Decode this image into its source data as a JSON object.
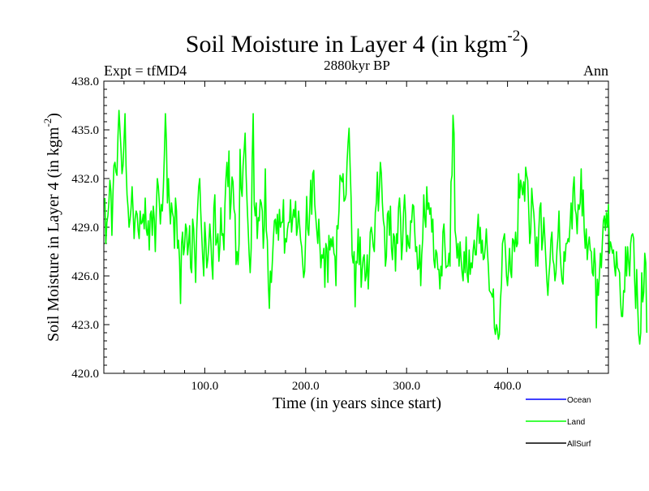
{
  "chart_data": {
    "type": "line",
    "title": "Soil Moisture in Layer 4 (in kgm",
    "title_sup": "-2",
    "title_close": ")",
    "subtitle": "2880kyr BP",
    "left_label": "Expt = tfMD4",
    "right_label": "Ann",
    "xlabel": "Time (in years since start)",
    "ylabel": "Soil Moisture in Layer 4 (in kgm",
    "ylabel_sup": "-2",
    "ylabel_close": ")",
    "xlim": [
      0,
      500
    ],
    "ylim": [
      420,
      438
    ],
    "x_ticks": [
      100,
      200,
      300,
      400
    ],
    "x_tick_labels": [
      "100.0",
      "200.0",
      "300.0",
      "400.0"
    ],
    "y_ticks": [
      420,
      423,
      426,
      429,
      432,
      435,
      438
    ],
    "y_tick_labels": [
      "420.0",
      "423.0",
      "426.0",
      "429.0",
      "432.0",
      "435.0",
      "438.0"
    ],
    "legend": [
      {
        "name": "Ocean",
        "color": "#0000ff"
      },
      {
        "name": "Land",
        "color": "#00ff00"
      },
      {
        "name": "AllSurf",
        "color": "#000000"
      }
    ],
    "series": [
      {
        "name": "Land",
        "color": "#00ff00",
        "x_start": 1,
        "x_step": 1,
        "values": [
          430.8,
          428.0,
          429.3,
          429.7,
          430.5,
          431.9,
          431.2,
          428.5,
          431.0,
          432.8,
          433.0,
          432.4,
          432.2,
          434.6,
          436.2,
          435.0,
          433.8,
          432.3,
          432.8,
          434.3,
          436.0,
          432.8,
          431.0,
          430.2,
          429.0,
          429.5,
          430.2,
          431.5,
          430.0,
          428.3,
          429.5,
          430.0,
          429.8,
          428.8,
          428.3,
          430.0,
          429.2,
          429.3,
          429.8,
          428.9,
          430.8,
          428.9,
          428.5,
          429.4,
          427.6,
          429.8,
          430.0,
          428.5,
          430.3,
          429.5,
          427.5,
          430.1,
          432.0,
          431.5,
          430.5,
          429.2,
          430.4,
          430.0,
          431.5,
          433.5,
          436.0,
          434.3,
          430.5,
          432.0,
          430.4,
          429.2,
          430.5,
          429.9,
          429.6,
          427.7,
          430.8,
          430.0,
          427.7,
          428.2,
          427.0,
          424.3,
          428.0,
          428.7,
          427.3,
          427.8,
          429.2,
          428.9,
          427.3,
          428.0,
          429.1,
          426.5,
          426.2,
          429.5,
          428.9,
          427.4,
          425.6,
          428.8,
          430.3,
          431.5,
          432.0,
          430.0,
          428.5,
          427.1,
          426.0,
          429.3,
          428.2,
          426.5,
          427.0,
          427.9,
          429.2,
          428.2,
          426.7,
          425.8,
          430.2,
          431.0,
          427.9,
          428.1,
          428.6,
          426.9,
          427.9,
          430.2,
          428.5,
          428.6,
          427.6,
          430.4,
          432.0,
          433.0,
          431.5,
          433.7,
          429.5,
          430.5,
          432.1,
          431.8,
          430.1,
          429.8,
          426.7,
          427.5,
          426.7,
          428.0,
          433.8,
          431.4,
          430.9,
          432.8,
          433.7,
          434.8,
          432.2,
          430.4,
          428.9,
          427.3,
          426.2,
          427.7,
          433.2,
          436.0,
          430.4,
          429.7,
          430.5,
          428.3,
          429.6,
          429.4,
          430.7,
          430.5,
          430.0,
          427.7,
          429.1,
          432.6,
          428.8,
          428.2,
          425.5,
          424.0,
          426.3,
          425.6,
          426.9,
          428.3,
          429.4,
          429.5,
          428.6,
          429.8,
          428.2,
          430.1,
          429.0,
          429.3,
          429.3,
          430.7,
          427.4,
          428.3,
          428.1,
          428.9,
          429.3,
          429.3,
          430.7,
          428.7,
          429.5,
          430.1,
          429.6,
          430.6,
          428.5,
          429.0,
          430.0,
          429.1,
          428.2,
          427.8,
          426.8,
          425.9,
          426.3,
          428.5,
          430.9,
          428.9,
          428.5,
          430.0,
          431.9,
          429.8,
          432.3,
          432.5,
          430.4,
          429.6,
          428.8,
          428.0,
          429.5,
          428.0,
          426.5,
          427.3,
          427.1,
          427.7,
          425.3,
          428.0,
          427.7,
          425.6,
          428.5,
          427.6,
          428.3,
          427.8,
          428.4,
          427.4,
          427.2,
          425.4,
          429.1,
          428.9,
          430.0,
          432.2,
          432.0,
          431.8,
          432.3,
          430.6,
          430.7,
          431.0,
          433.0,
          434.2,
          435.1,
          432.8,
          430.8,
          427.3,
          426.8,
          427.5,
          424.1,
          426.9,
          426.8,
          428.9,
          426.7,
          428.4,
          425.3,
          426.4,
          427.1,
          427.3,
          425.7,
          426.0,
          427.3,
          425.2,
          426.8,
          428.7,
          429.0,
          428.5,
          427.8,
          427.5,
          429.9,
          430.5,
          432.4,
          430.0,
          431.3,
          433.0,
          432.3,
          430.5,
          429.4,
          429.0,
          426.6,
          427.2,
          429.8,
          430.0,
          428.5,
          430.3,
          427.7,
          427.0,
          428.6,
          428.4,
          426.3,
          428.6,
          428.0,
          430.2,
          430.8,
          429.6,
          427.0,
          428.0,
          429.9,
          431.0,
          429.7,
          427.5,
          428.5,
          427.9,
          427.7,
          429.4,
          429.3,
          430.4,
          430.3,
          428.8,
          427.5,
          427.8,
          426.4,
          426.5,
          427.9,
          425.4,
          427.3,
          428.3,
          431.0,
          429.6,
          429.0,
          431.5,
          430.1,
          430.5,
          429.8,
          430.2,
          428.7,
          429.5,
          427.0,
          426.5,
          427.6,
          427.4,
          426.4,
          426.4,
          425.2,
          426.6,
          426.0,
          428.7,
          429.2,
          427.8,
          426.5,
          426.6,
          426.6,
          427.4,
          426.6,
          431.8,
          432.2,
          435.9,
          434.8,
          428.8,
          428.3,
          427.1,
          428.0,
          426.6,
          428.1,
          427.0,
          426.2,
          425.7,
          427.5,
          426.2,
          428.4,
          426.1,
          425.6,
          427.6,
          426.1,
          426.8,
          426.5,
          427.6,
          428.2,
          427.3,
          427.3,
          428.8,
          429.8,
          428.0,
          429.0,
          427.4,
          428.2,
          427.0,
          427.1,
          427.8,
          428.9,
          427.6,
          426.6,
          425.1,
          425.0,
          424.9,
          424.7,
          425.2,
          422.8,
          422.4,
          423.0,
          422.7,
          422.1,
          422.4,
          424.5,
          425.5,
          428.0,
          428.3,
          428.6,
          427.5,
          426.0,
          425.4,
          426.4,
          427.7,
          426.3,
          425.9,
          428.3,
          428.2,
          427.5,
          428.7,
          427.8,
          428.0,
          432.3,
          430.8,
          431.9,
          431.5,
          431.0,
          431.8,
          430.6,
          432.7,
          432.2,
          431.9,
          430.1,
          428.0,
          428.7,
          431.4,
          430.5,
          429.9,
          428.9,
          426.6,
          428.4,
          426.6,
          428.8,
          430.2,
          430.5,
          427.6,
          428.2,
          429.6,
          428.3,
          427.0,
          425.7,
          424.8,
          426.0,
          426.8,
          428.2,
          428.7,
          427.0,
          426.7,
          425.7,
          426.2,
          427.6,
          428.4,
          430.0,
          427.6,
          426.5,
          425.7,
          425.5,
          427.5,
          426.9,
          428.0,
          428.0,
          428.3,
          428.1,
          429.2,
          430.5,
          428.9,
          431.4,
          432.1,
          430.1,
          429.8,
          428.6,
          430.4,
          430.1,
          430.5,
          432.6,
          429.7,
          431.3,
          428.8,
          427.7,
          428.9,
          427.0,
          427.9,
          428.4,
          427.6,
          427.5,
          426.2,
          426.0,
          427.7,
          426.7,
          422.8,
          425.8,
          424.8,
          426.0,
          427.4,
          426.5,
          428.1,
          429.4,
          429.7,
          428.8,
          429.9,
          429.0,
          430.4,
          427.4,
          428.1,
          427.8,
          427.4,
          427.6,
          426.6,
          426.0,
          427.5,
          426.5,
          426.4,
          426.2,
          424.4,
          423.5,
          423.5,
          425.1,
          425.0,
          427.8,
          426.0,
          427.8,
          426.9,
          426.0,
          428.0,
          428.5,
          428.6,
          428.3,
          425.7,
          424.0,
          426.4,
          424.1,
          422.4,
          421.8,
          422.5,
          426.2,
          424.4,
          425.0,
          427.4,
          426.8,
          422.5
        ]
      }
    ]
  }
}
